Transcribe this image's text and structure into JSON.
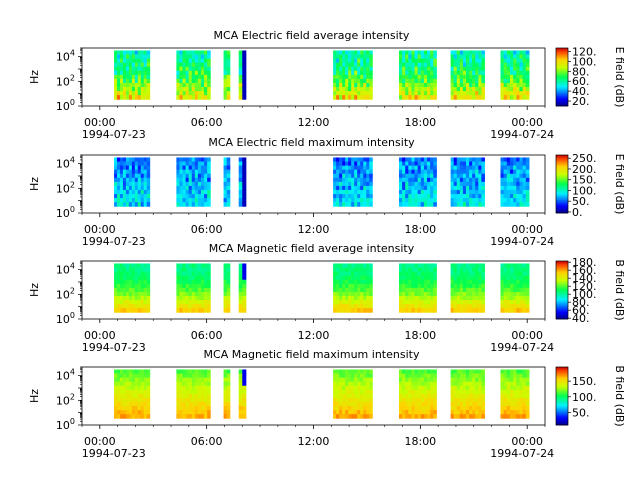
{
  "chart_data": [
    {
      "type": "heatmap",
      "title": "MCA  Electric field average intensity",
      "ylabel": "Hz",
      "y_ticks": [
        "10",
        "10",
        "10"
      ],
      "y_tick_exponents": [
        "0",
        "2",
        "4"
      ],
      "ylim_log10": [
        0,
        4.7
      ],
      "x_ticks": [
        "00:00",
        "06:00",
        "12:00",
        "18:00",
        "00:00"
      ],
      "x_tick_hours": [
        0,
        6,
        12,
        18,
        24
      ],
      "date_start": "1994-07-23",
      "date_end": "1994-07-24",
      "xlim_hours": [
        -1,
        25
      ],
      "colorbar": {
        "label": "E field (dB)",
        "ticks": [
          "20.",
          "40.",
          "60.",
          "80.",
          "100.",
          "120."
        ],
        "tick_values": [
          20,
          40,
          60,
          80,
          100,
          120
        ],
        "range": [
          10,
          127
        ]
      },
      "profile": "e_avg",
      "segments_hours": [
        [
          0.8,
          2.8
        ],
        [
          4.3,
          6.2
        ],
        [
          6.95,
          7.3
        ],
        [
          7.8,
          8.2
        ],
        [
          13.1,
          15.3
        ],
        [
          16.8,
          18.9
        ],
        [
          19.7,
          21.6
        ],
        [
          22.5,
          24.1
        ]
      ]
    },
    {
      "type": "heatmap",
      "title": "MCA  Electric field maximum intensity",
      "ylabel": "Hz",
      "y_ticks": [
        "10",
        "10",
        "10"
      ],
      "y_tick_exponents": [
        "0",
        "2",
        "4"
      ],
      "ylim_log10": [
        0,
        4.7
      ],
      "x_ticks": [
        "00:00",
        "06:00",
        "12:00",
        "18:00",
        "00:00"
      ],
      "x_tick_hours": [
        0,
        6,
        12,
        18,
        24
      ],
      "date_start": "1994-07-23",
      "date_end": "1994-07-24",
      "xlim_hours": [
        -1,
        25
      ],
      "colorbar": {
        "label": "E field (dB)",
        "ticks": [
          "0.",
          "50.",
          "100.",
          "150.",
          "200.",
          "250."
        ],
        "tick_values": [
          0,
          50,
          100,
          150,
          200,
          250
        ],
        "range": [
          -5,
          265
        ]
      },
      "profile": "e_max",
      "segments_hours": [
        [
          0.8,
          2.8
        ],
        [
          4.3,
          6.2
        ],
        [
          6.95,
          7.3
        ],
        [
          7.8,
          8.2
        ],
        [
          13.1,
          15.3
        ],
        [
          16.8,
          18.9
        ],
        [
          19.7,
          21.6
        ],
        [
          22.5,
          24.1
        ]
      ]
    },
    {
      "type": "heatmap",
      "title": "MCA  Magnetic field average intensity",
      "ylabel": "Hz",
      "y_ticks": [
        "10",
        "10",
        "10"
      ],
      "y_tick_exponents": [
        "0",
        "2",
        "4"
      ],
      "ylim_log10": [
        0,
        4.7
      ],
      "x_ticks": [
        "00:00",
        "06:00",
        "12:00",
        "18:00",
        "00:00"
      ],
      "x_tick_hours": [
        0,
        6,
        12,
        18,
        24
      ],
      "date_start": "1994-07-23",
      "date_end": "1994-07-24",
      "xlim_hours": [
        -1,
        25
      ],
      "colorbar": {
        "label": "B field (dB)",
        "ticks": [
          "40.",
          "60.",
          "80.",
          "100.",
          "120.",
          "140.",
          "160.",
          "180."
        ],
        "tick_values": [
          40,
          60,
          80,
          100,
          120,
          140,
          160,
          180
        ],
        "range": [
          38,
          183
        ]
      },
      "profile": "b_avg",
      "segments_hours": [
        [
          0.8,
          2.8
        ],
        [
          4.3,
          6.2
        ],
        [
          6.95,
          7.3
        ],
        [
          7.8,
          8.2
        ],
        [
          13.1,
          15.3
        ],
        [
          16.8,
          18.9
        ],
        [
          19.7,
          21.6
        ],
        [
          22.5,
          24.1
        ]
      ]
    },
    {
      "type": "heatmap",
      "title": "MCA  Magnetic field maximum intensity",
      "ylabel": "Hz",
      "y_ticks": [
        "10",
        "10",
        "10"
      ],
      "y_tick_exponents": [
        "0",
        "2",
        "4"
      ],
      "ylim_log10": [
        0,
        4.7
      ],
      "x_ticks": [
        "00:00",
        "06:00",
        "12:00",
        "18:00",
        "00:00"
      ],
      "x_tick_hours": [
        0,
        6,
        12,
        18,
        24
      ],
      "date_start": "1994-07-23",
      "date_end": "1994-07-24",
      "xlim_hours": [
        -1,
        25
      ],
      "colorbar": {
        "label": "B field (dB)",
        "ticks": [
          "50.",
          "100.",
          "150."
        ],
        "tick_values": [
          50,
          100,
          150
        ],
        "range": [
          10,
          195
        ]
      },
      "profile": "b_max",
      "segments_hours": [
        [
          0.8,
          2.8
        ],
        [
          4.3,
          6.2
        ],
        [
          6.95,
          7.3
        ],
        [
          7.8,
          8.2
        ],
        [
          13.1,
          15.3
        ],
        [
          16.8,
          18.9
        ],
        [
          19.7,
          21.6
        ],
        [
          22.5,
          24.1
        ]
      ]
    }
  ]
}
